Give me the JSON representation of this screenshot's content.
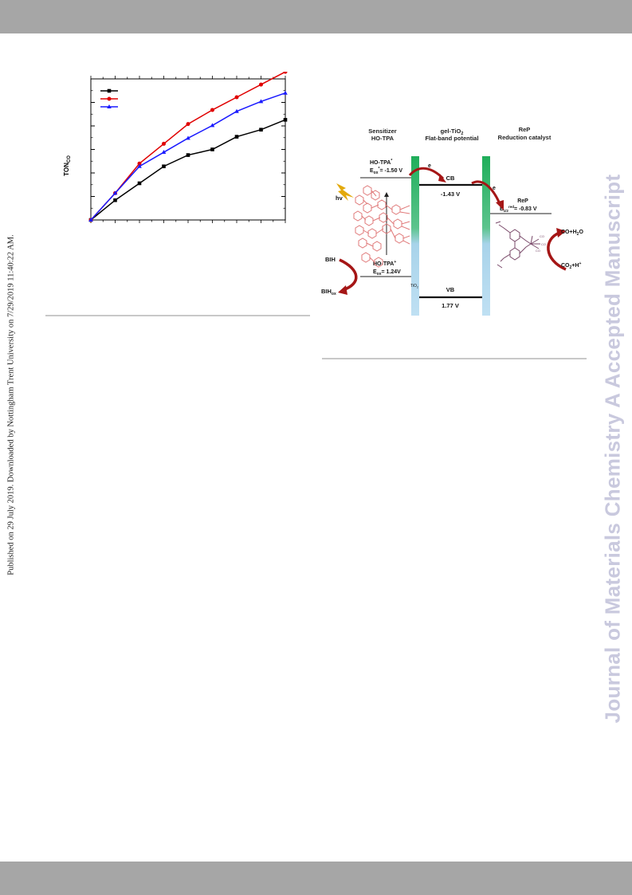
{
  "side_note": "Published on 29 July 2019. Downloaded by Nottingham Trent University on 7/29/2019 11:40:22 AM.",
  "watermark": "Journal of Materials Chemistry A Accepted Manuscript",
  "chart_data": {
    "type": "line",
    "title": "",
    "xlabel": "",
    "ylabel": "TON",
    "ylabel_sub": "CO",
    "x": [
      0,
      1,
      2,
      3,
      4,
      5,
      6,
      7,
      8
    ],
    "xlim": [
      0,
      8
    ],
    "ylim": [
      0,
      1.0
    ],
    "grid": false,
    "legend": "top-left",
    "series": [
      {
        "color": "#000000",
        "marker": "square",
        "values": [
          0,
          0.14,
          0.26,
          0.38,
          0.46,
          0.5,
          0.59,
          0.64,
          0.71
        ]
      },
      {
        "color": "#e00000",
        "marker": "circle",
        "values": [
          0,
          0.19,
          0.4,
          0.54,
          0.68,
          0.78,
          0.87,
          0.96,
          1.05
        ]
      },
      {
        "color": "#1a1aff",
        "marker": "triangle",
        "values": [
          0,
          0.19,
          0.38,
          0.48,
          0.58,
          0.67,
          0.77,
          0.84,
          0.9
        ]
      }
    ]
  },
  "diagram": {
    "sensitizer_title_1": "Sensitizer",
    "sensitizer_title_2": "HO-TPA",
    "tio2_title_1": "gel-TiO",
    "tio2_title_1_sub": "2",
    "tio2_title_2": "Flat-band potential",
    "rep_title_1": "ReP",
    "rep_title_2": "Reduction catalyst",
    "excited_label": "HO-TPA",
    "excited_sup": "*",
    "excited_pot_pre": "E",
    "excited_pot_sub": "ox",
    "excited_pot_sup": "*",
    "excited_pot_val": "= -1.50 V",
    "e1": "e",
    "e2": "e",
    "cb_label": "CB",
    "cb_pot": "-1.43 V",
    "rep_label": "ReP",
    "rep_pot_pre": "E",
    "rep_pot_sub": "1/2",
    "rep_pot_sup": "red",
    "rep_pot_val": "= -0.83 V",
    "hv": "hv",
    "bih": "BIH",
    "bihox": "BIH",
    "bihox_sub": "ox",
    "ground_label": "HO-TPA",
    "ground_sup": "+",
    "ground_pot_pre": "E",
    "ground_pot_sub": "ox",
    "ground_pot_val": "= 1.24V",
    "tio2_small": "TiO",
    "tio2_small_sub": "2",
    "vb_label": "VB",
    "vb_pot": "1.77 V",
    "co_h2o": "CO+H",
    "co_h2o_sub": "2",
    "co_h2o_end": "O",
    "co2_h": "CO",
    "co2_h_sub": "2",
    "co2_h_end": "+H",
    "co2_h_sup": "+"
  }
}
